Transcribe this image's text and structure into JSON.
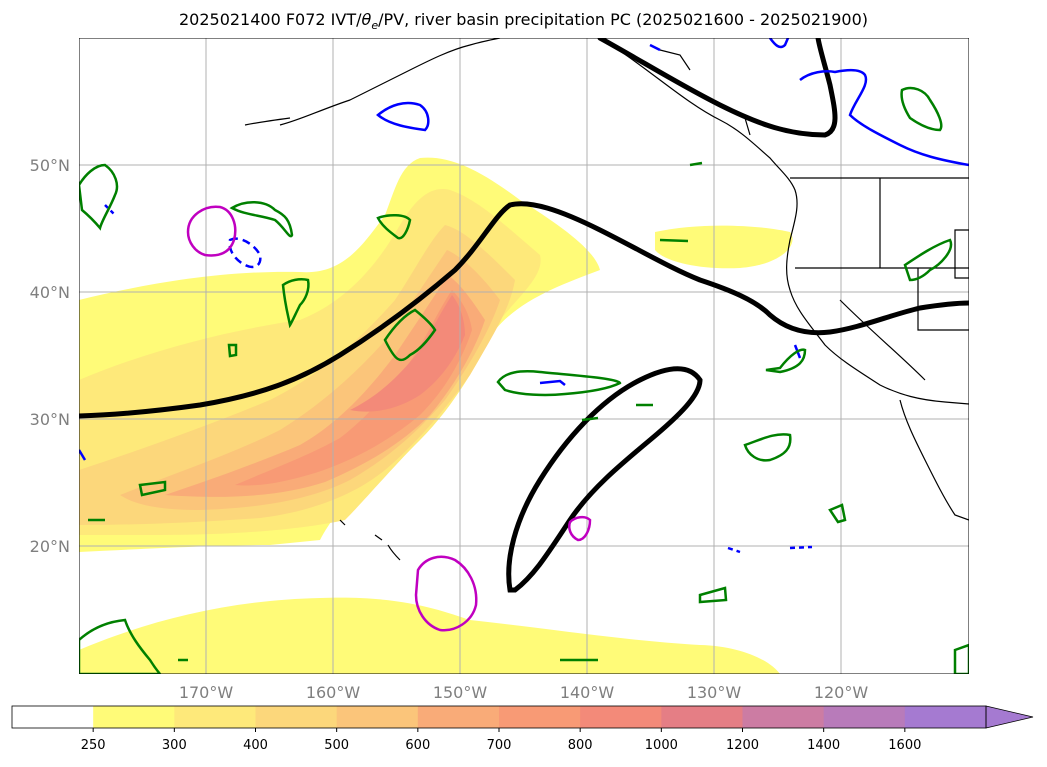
{
  "title": {
    "prefix": "2025021400 F072 IVT/",
    "theta": "θ",
    "theta_sub": "e",
    "suffix": "/PV, river basin precipitation PC (2025021600 - 2025021900)"
  },
  "axes": {
    "lon_labels": [
      "170°W",
      "160°W",
      "150°W",
      "140°W",
      "130°W",
      "120°W"
    ],
    "lat_labels": [
      "50°N",
      "40°N",
      "30°N",
      "20°N"
    ]
  },
  "colorbar": {
    "ticks": [
      "250",
      "300",
      "400",
      "500",
      "600",
      "700",
      "800",
      "1000",
      "1200",
      "1400",
      "1600"
    ],
    "colors": [
      "#ffffff",
      "#fffb78",
      "#fee97a",
      "#fcd77b",
      "#fbc57a",
      "#f9ab78",
      "#f89a75",
      "#f38a79",
      "#e57e85",
      "#cc7ca3",
      "#b87bba",
      "#a57ad1"
    ]
  },
  "colors": {
    "theta_e_contour": "#000000",
    "pv_contour_blue": "#0000ff",
    "precip_green": "#008000",
    "precip_magenta": "#c000c0",
    "grid": "#b0b0b0"
  }
}
